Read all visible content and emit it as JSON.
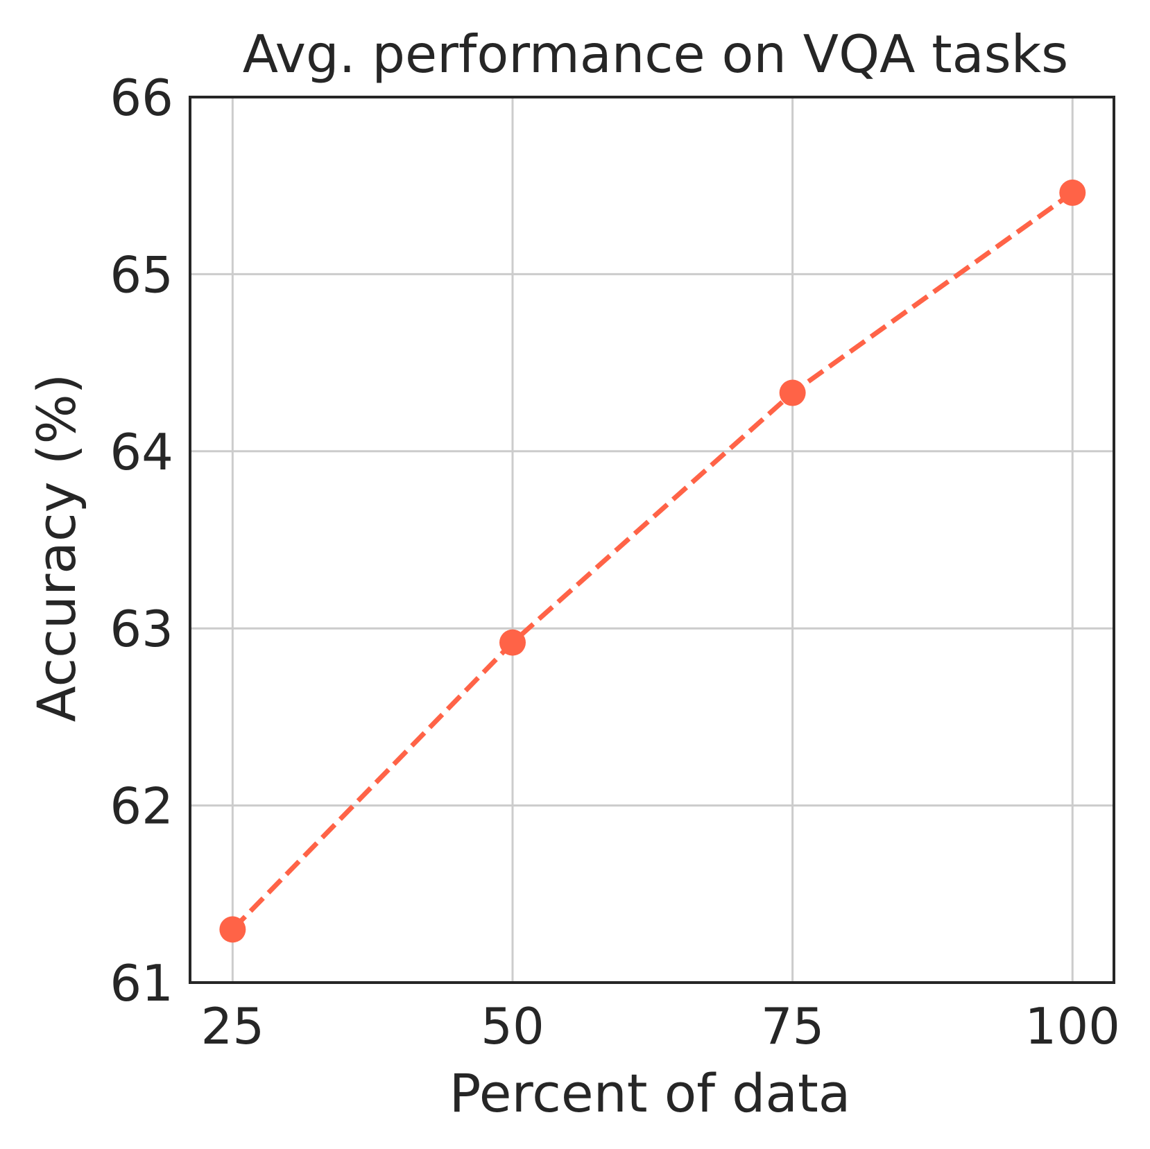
{
  "chart_data": {
    "type": "line",
    "title": "Avg. performance on VQA tasks",
    "xlabel": "Percent of data",
    "ylabel": "Accuracy (%)",
    "x": [
      25,
      50,
      75,
      100
    ],
    "x_ticks": [
      "25",
      "50",
      "75",
      "100"
    ],
    "y_ticks": [
      "61",
      "62",
      "63",
      "64",
      "65",
      "66"
    ],
    "xlim": [
      21.2,
      103.7
    ],
    "ylim": [
      61,
      66
    ],
    "grid": true,
    "series": [
      {
        "values": [
          61.3,
          62.92,
          64.33,
          65.46
        ],
        "color": "#ff6347",
        "line_style": "dashed",
        "marker": "circle"
      }
    ]
  }
}
